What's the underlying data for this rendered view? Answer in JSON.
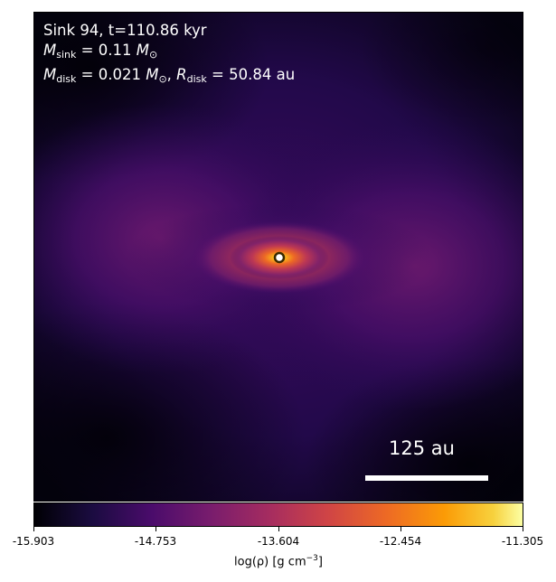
{
  "panel": {
    "title_line": "Sink 94, t=110.86 kyr",
    "msink": {
      "symbol": "M",
      "sub": "sink",
      "value": "= 0.11",
      "unit": "M",
      "unit_sub": "⊙"
    },
    "mdisk": {
      "symbol": "M",
      "sub": "disk",
      "value": "= 0.021",
      "unit": "M",
      "unit_sub": "⊙"
    },
    "rdisk": {
      "symbol": "R",
      "sub": "disk",
      "value": "= 50.84 au"
    },
    "scalebar_label": "125 au",
    "colormap": "inferno"
  },
  "colorbar": {
    "ticks": [
      "-15.903",
      "-14.753",
      "-13.604",
      "-12.454",
      "-11.305"
    ],
    "label_text": "log(ρ) [g cm",
    "label_exp": "−3",
    "label_close": "]"
  }
}
